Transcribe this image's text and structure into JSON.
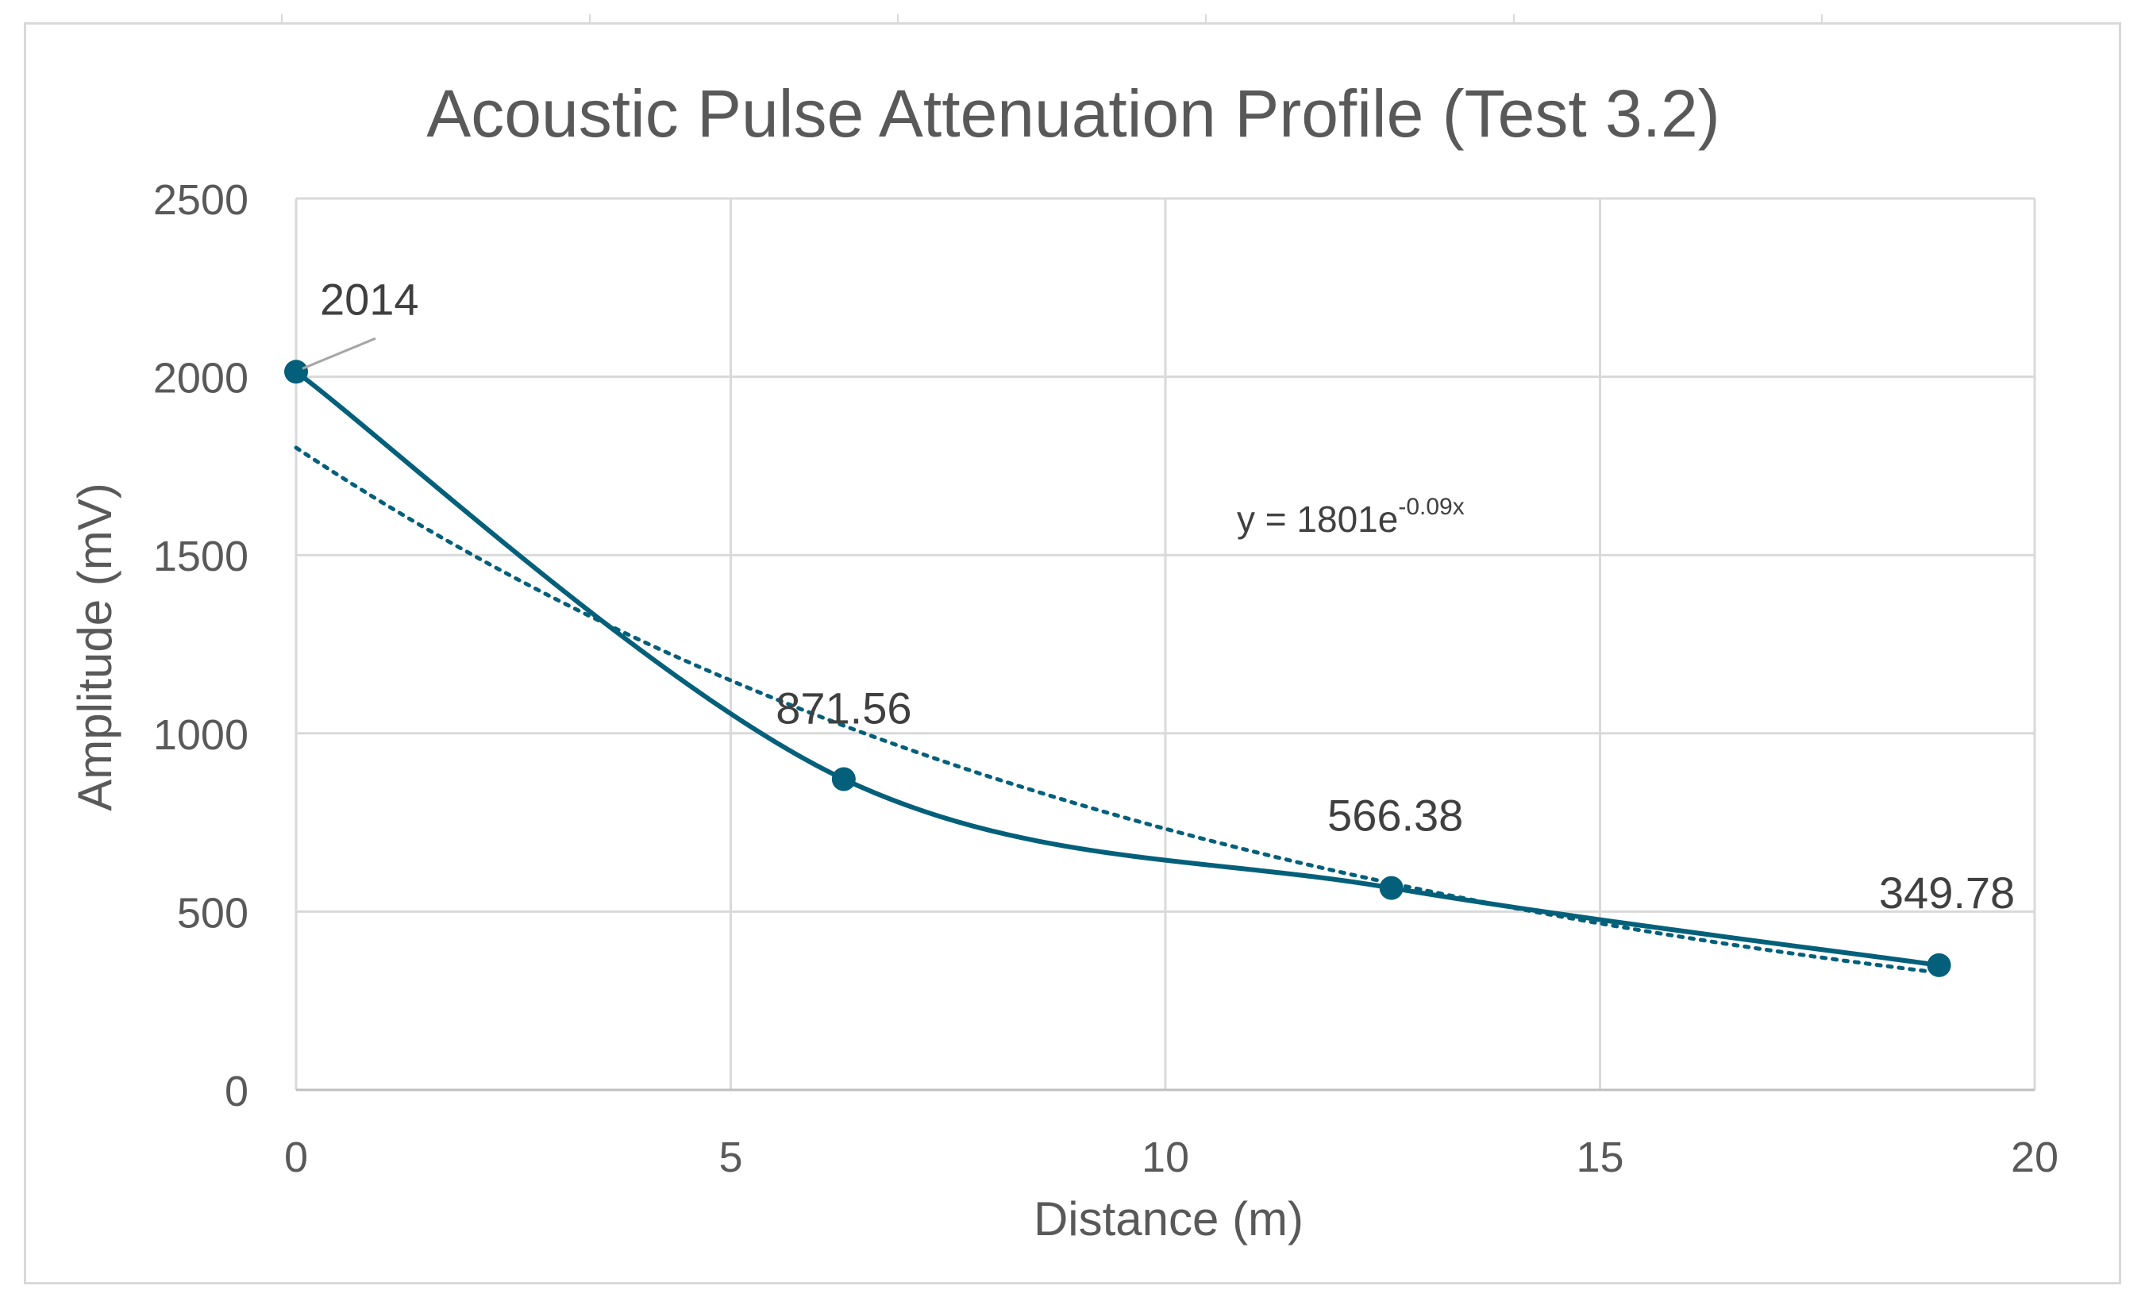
{
  "chart_data": {
    "type": "scatter",
    "title": "Acoustic Pulse Attenuation Profile (Test 3.2)",
    "xlabel": "Distance (m)",
    "ylabel": "Amplitude (mV)",
    "xlim": [
      0,
      20
    ],
    "ylim": [
      0,
      2500
    ],
    "x_ticks": [
      "0",
      "5",
      "10",
      "15",
      "20"
    ],
    "y_ticks": [
      "0",
      "500",
      "1000",
      "1500",
      "2000",
      "2500"
    ],
    "grid": true,
    "legend": "none",
    "series": [
      {
        "x": [
          0,
          6.3,
          12.6,
          18.9
        ],
        "y": [
          2014,
          871.56,
          566.38,
          349.78
        ],
        "labels": [
          "2014",
          "871.56",
          "566.38",
          "349.78"
        ],
        "style": "smoothed line with markers",
        "color": "#04607a"
      }
    ],
    "trendline": {
      "type": "exponential",
      "a": 1801,
      "b": -0.09,
      "style": "dotted",
      "color": "#04607a",
      "equation_prefix": "y = 1801e",
      "equation_exponent": "-0.09x"
    }
  }
}
